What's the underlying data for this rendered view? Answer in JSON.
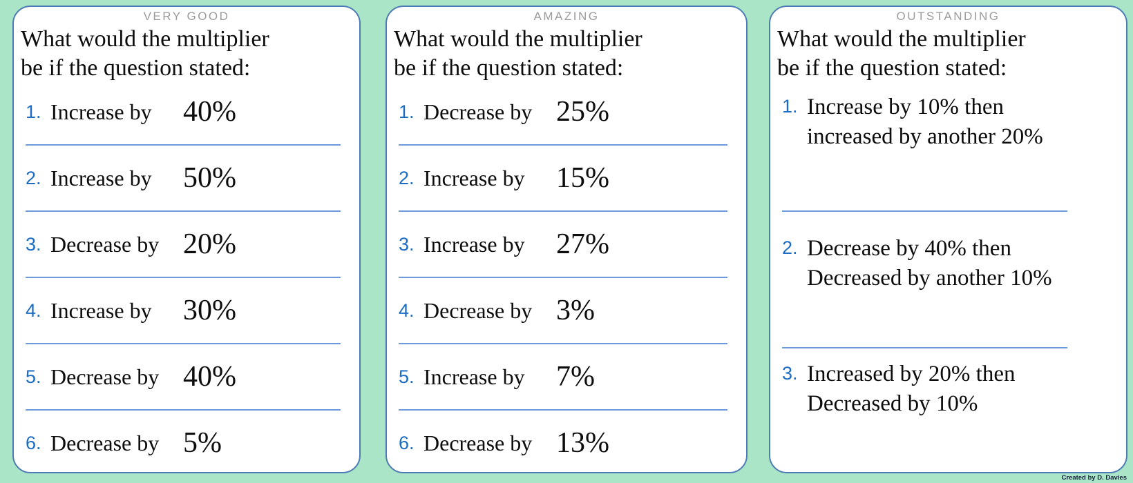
{
  "colors": {
    "background": "#a9e5c6",
    "panel_border": "#4d7bb5",
    "divider": "#6b9cd9",
    "number_blue": "#1b6cc2",
    "header_gray": "#9b9b9b"
  },
  "footer": {
    "credit": "Created by D. Davies"
  },
  "panels": [
    {
      "header": "VERY GOOD",
      "title_line1": "What would the multiplier",
      "title_line2": "be if the question stated:",
      "items": [
        {
          "num": "1.",
          "label": "Increase by",
          "value": "40%"
        },
        {
          "num": "2.",
          "label": "Increase by",
          "value": "50%"
        },
        {
          "num": "3.",
          "label": "Decrease by",
          "value": "20%"
        },
        {
          "num": "4.",
          "label": "Increase by",
          "value": "30%"
        },
        {
          "num": "5.",
          "label": "Decrease by",
          "value": "40%"
        },
        {
          "num": "6.",
          "label": "Decrease by",
          "value": "5%"
        }
      ]
    },
    {
      "header": "AMAZING",
      "title_line1": "What would the multiplier",
      "title_line2": "be if the question stated:",
      "items": [
        {
          "num": "1.",
          "label": "Decrease by",
          "value": "25%"
        },
        {
          "num": "2.",
          "label": "Increase by",
          "value": "15%"
        },
        {
          "num": "3.",
          "label": "Increase by",
          "value": "27%"
        },
        {
          "num": "4.",
          "label": "Decrease by",
          "value": "3%"
        },
        {
          "num": "5.",
          "label": "Increase by",
          "value": "7%"
        },
        {
          "num": "6.",
          "label": "Decrease by",
          "value": "13%"
        }
      ]
    },
    {
      "header": "OUTSTANDING",
      "title_line1": "What would the multiplier",
      "title_line2": "be if the question stated:",
      "items": [
        {
          "num": "1.",
          "line1": "Increase by 10% then",
          "line2": "increased by another 20%"
        },
        {
          "num": "2.",
          "line1": "Decrease by 40% then",
          "line2": "Decreased by another 10%"
        },
        {
          "num": "3.",
          "line1": "Increased by 20% then",
          "line2": "Decreased by 10%"
        }
      ]
    }
  ]
}
